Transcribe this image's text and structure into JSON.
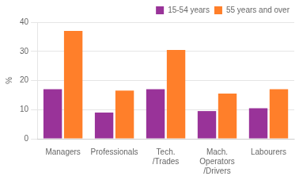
{
  "chart_data": {
    "type": "bar",
    "categories": [
      "Managers",
      "Professionals",
      "Tech.\n/Trades",
      "Mach.\nOperators\n/Drivers",
      "Labourers"
    ],
    "series": [
      {
        "name": "15-54 years",
        "color": "#993399",
        "values": [
          17.0,
          9.0,
          17.0,
          9.5,
          10.5
        ]
      },
      {
        "name": "55 years and over",
        "color": "#FF7F2A",
        "values": [
          37.0,
          16.5,
          30.5,
          15.5,
          17.0
        ]
      }
    ],
    "ylabel": "%",
    "ylim": [
      0,
      40
    ],
    "yticks": [
      0,
      10,
      20,
      30,
      40
    ],
    "grid": true,
    "legend": "upper right"
  }
}
